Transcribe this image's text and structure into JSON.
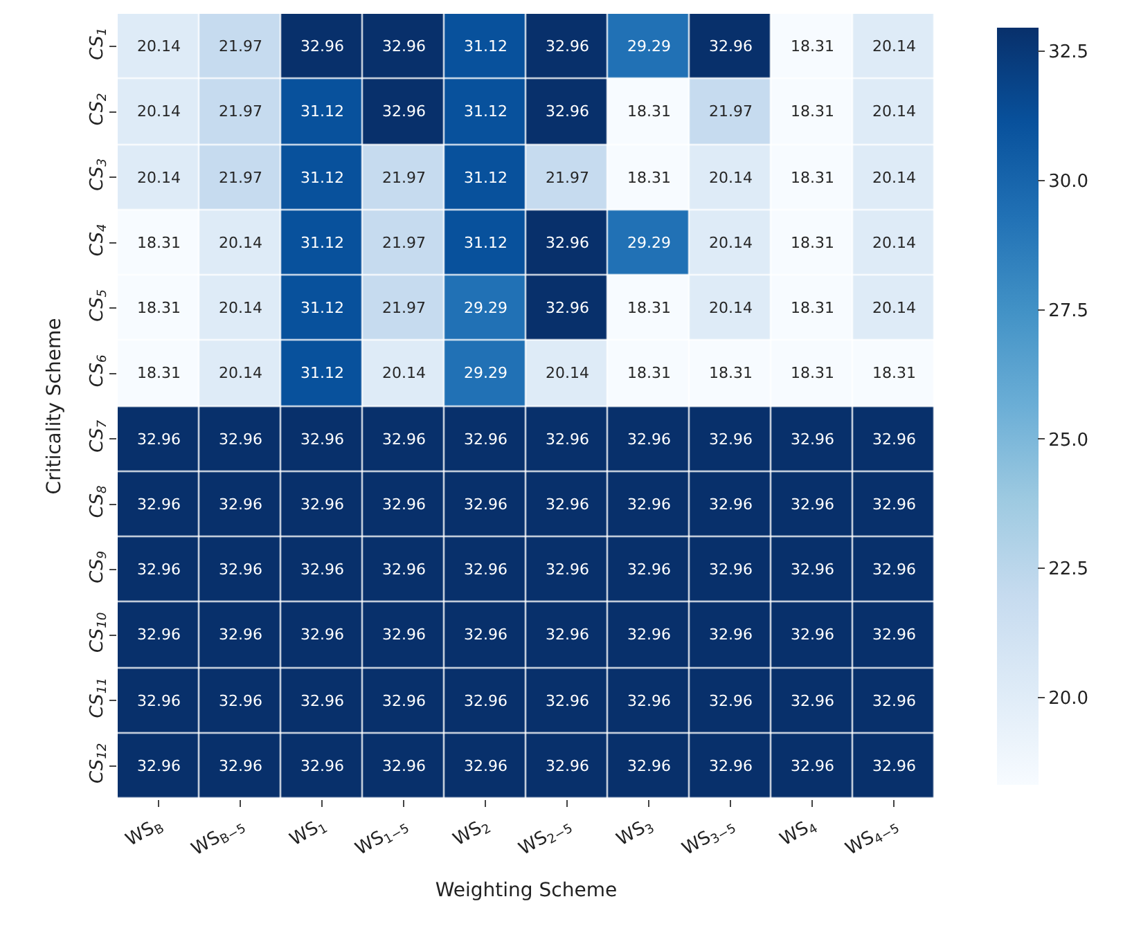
{
  "chart_data": {
    "type": "heatmap",
    "xlabel": "Weighting Scheme",
    "ylabel": "Criticality Scheme",
    "categories": [
      "WS$_{B}$",
      "WS$_{B−5}$",
      "WS$_{1}$",
      "WS$_{1−5}$",
      "WS$_{2}$",
      "WS$_{2−5}$",
      "WS$_{3}$",
      "WS$_{3−5}$",
      "WS$_{4}$",
      "WS$_{4−5}$"
    ],
    "y_categories": [
      "CS$_{1}$",
      "CS$_{2}$",
      "CS$_{3}$",
      "CS$_{4}$",
      "CS$_{5}$",
      "CS$_{6}$",
      "CS$_{7}$",
      "CS$_{8}$",
      "CS$_{9}$",
      "CS$_{10}$",
      "CS$_{11}$",
      "CS$_{12}$"
    ],
    "cells": [
      [
        20.14,
        21.97,
        32.96,
        32.96,
        31.12,
        32.96,
        29.29,
        32.96,
        18.31,
        20.14
      ],
      [
        20.14,
        21.97,
        31.12,
        32.96,
        31.12,
        32.96,
        18.31,
        21.97,
        18.31,
        20.14
      ],
      [
        20.14,
        21.97,
        31.12,
        21.97,
        31.12,
        21.97,
        18.31,
        20.14,
        18.31,
        20.14
      ],
      [
        18.31,
        20.14,
        31.12,
        21.97,
        31.12,
        32.96,
        29.29,
        20.14,
        18.31,
        20.14
      ],
      [
        18.31,
        20.14,
        31.12,
        21.97,
        29.29,
        32.96,
        18.31,
        20.14,
        18.31,
        20.14
      ],
      [
        18.31,
        20.14,
        31.12,
        20.14,
        29.29,
        20.14,
        18.31,
        18.31,
        18.31,
        18.31
      ],
      [
        32.96,
        32.96,
        32.96,
        32.96,
        32.96,
        32.96,
        32.96,
        32.96,
        32.96,
        32.96
      ],
      [
        32.96,
        32.96,
        32.96,
        32.96,
        32.96,
        32.96,
        32.96,
        32.96,
        32.96,
        32.96
      ],
      [
        32.96,
        32.96,
        32.96,
        32.96,
        32.96,
        32.96,
        32.96,
        32.96,
        32.96,
        32.96
      ],
      [
        32.96,
        32.96,
        32.96,
        32.96,
        32.96,
        32.96,
        32.96,
        32.96,
        32.96,
        32.96
      ],
      [
        32.96,
        32.96,
        32.96,
        32.96,
        32.96,
        32.96,
        32.96,
        32.96,
        32.96,
        32.96
      ],
      [
        32.96,
        32.96,
        32.96,
        32.96,
        32.96,
        32.96,
        32.96,
        32.96,
        32.96,
        32.96
      ]
    ],
    "data_labels": true,
    "clim": [
      18.31,
      32.96
    ],
    "cticks": [
      {
        "value": 20,
        "label": "20.0"
      },
      {
        "value": 22.5,
        "label": "22.5"
      },
      {
        "value": 25,
        "label": "25.0"
      },
      {
        "value": 27.5,
        "label": "27.5"
      },
      {
        "value": 30,
        "label": "30.0"
      },
      {
        "value": 32.5,
        "label": "32.5"
      }
    ]
  }
}
